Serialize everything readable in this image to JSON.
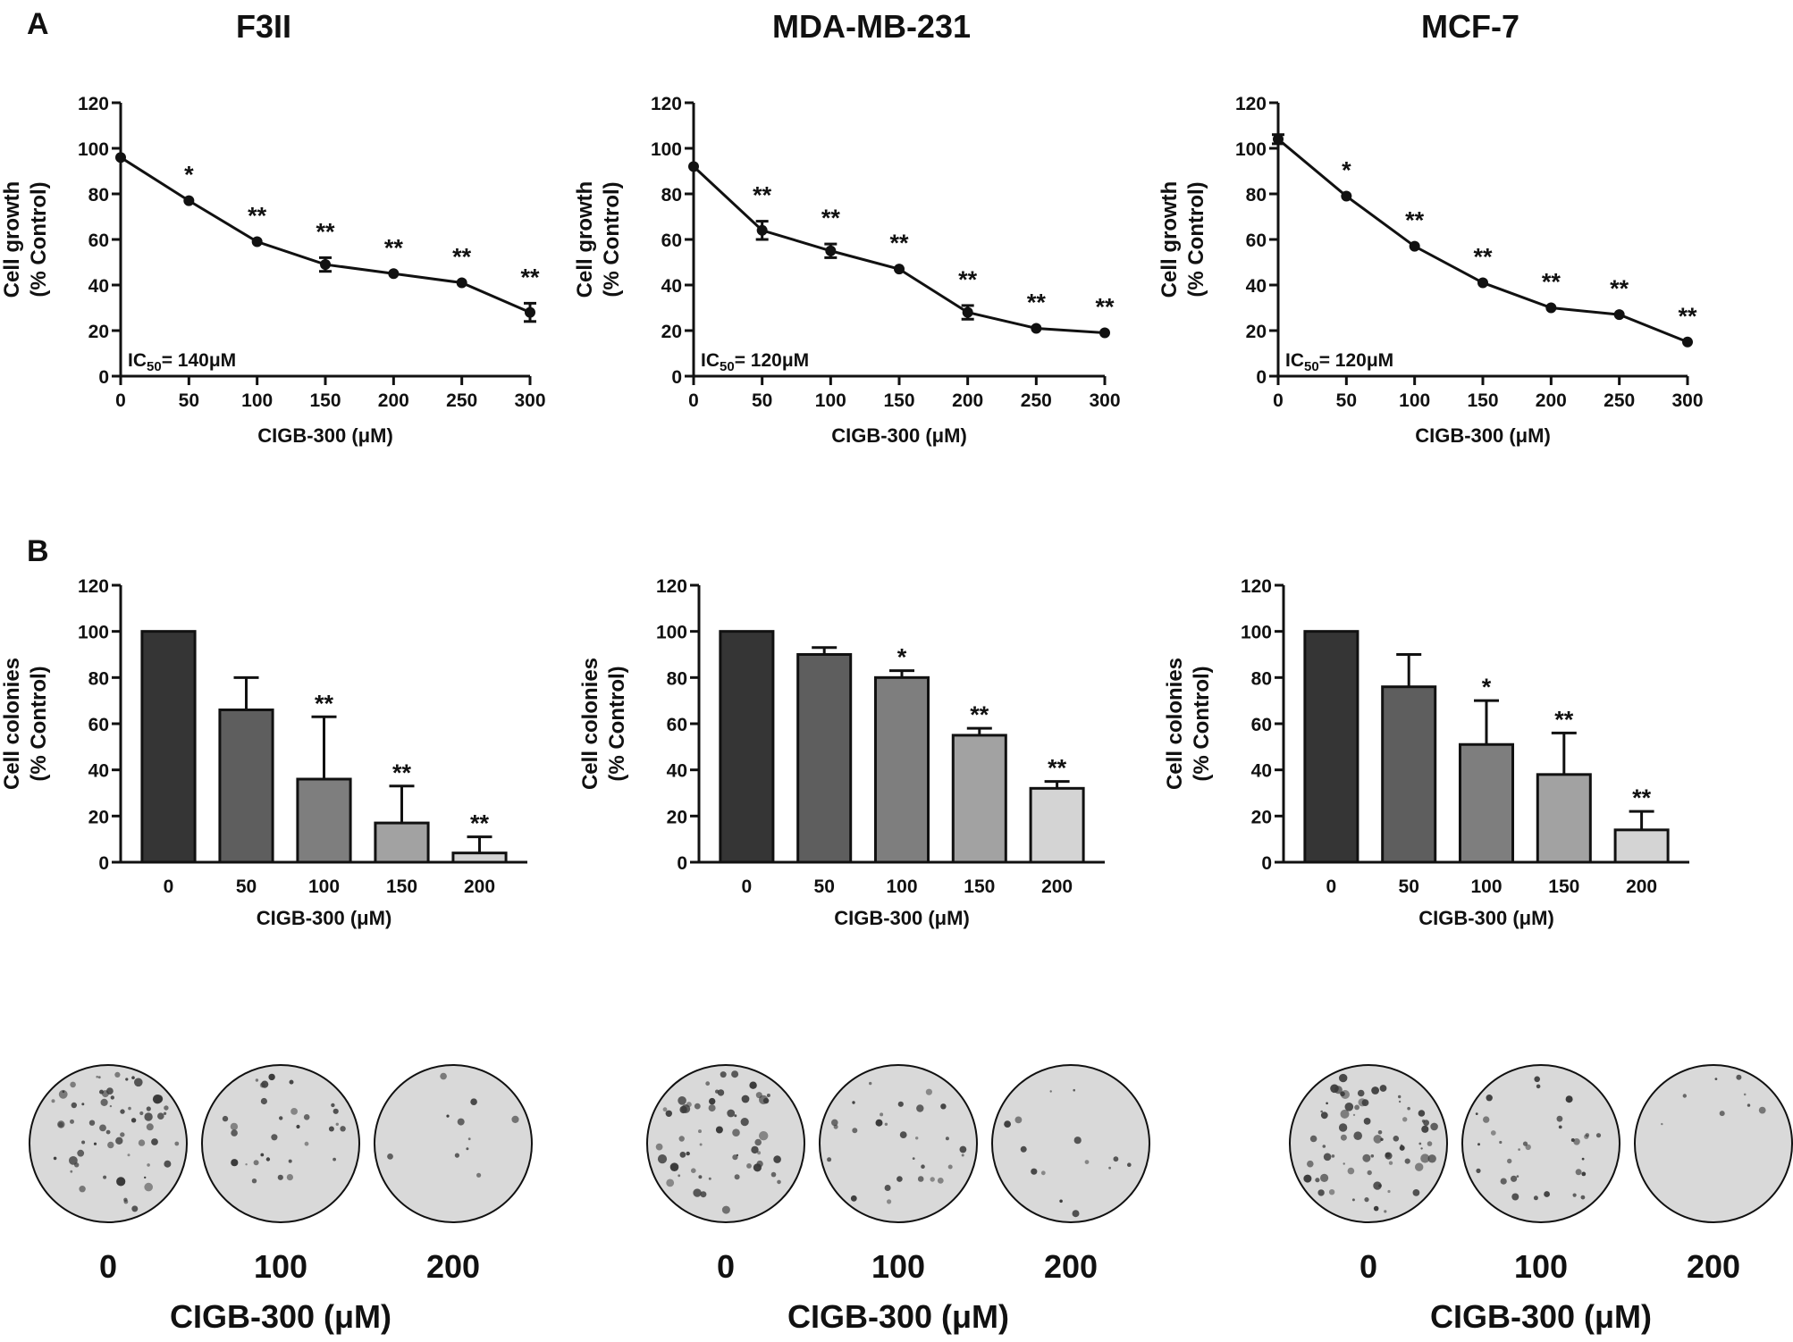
{
  "panel_labels": [
    "A",
    "B"
  ],
  "cell_lines": [
    "F3II",
    "MDA-MB-231",
    "MCF-7"
  ],
  "x_axis_label": "CIGB-300 (μM)",
  "growth_y_label_line1": "Cell growth",
  "growth_y_label_line2": "(% Control)",
  "colony_y_label_line1": "Cell colonies",
  "colony_y_label_line2": "(% Control)",
  "ic50_prefix": "IC",
  "ic50_subscript": "50",
  "ic50_values": [
    "= 140μM",
    "= 120μM",
    "= 120μM"
  ],
  "plate_labels": [
    "0",
    "100",
    "200"
  ],
  "plate_axis_label": "CIGB-300 (μM)",
  "colors": {
    "axis": "#111111",
    "bar_shades": [
      "#353535",
      "#5e5e5e",
      "#7e7e7e",
      "#a2a2a2",
      "#d4d4d4"
    ],
    "plate_bg": "#d9d9d9",
    "colony": "#3a3a3a"
  },
  "chart_data": [
    {
      "id": "A-F3II",
      "type": "line",
      "title": "F3II",
      "xlabel": "CIGB-300 (μM)",
      "ylabel": "Cell growth (% Control)",
      "x": [
        0,
        50,
        100,
        150,
        200,
        250,
        300
      ],
      "y": [
        96,
        77,
        59,
        49,
        45,
        41,
        28
      ],
      "err": [
        0,
        0,
        0,
        3,
        0,
        0,
        4
      ],
      "sig": [
        "",
        "*",
        "**",
        "**",
        "**",
        "**",
        "**"
      ],
      "xticks": [
        "0",
        "50",
        "100",
        "150",
        "200",
        "250",
        "300"
      ],
      "yticks": [
        "0",
        "20",
        "40",
        "60",
        "80",
        "100",
        "120"
      ],
      "xlim": [
        0,
        300
      ],
      "ylim": [
        0,
        120
      ],
      "annotation": "IC50= 140μM"
    },
    {
      "id": "A-MDA-MB-231",
      "type": "line",
      "title": "MDA-MB-231",
      "xlabel": "CIGB-300 (μM)",
      "ylabel": "Cell growth (% Control)",
      "x": [
        0,
        50,
        100,
        150,
        200,
        250,
        300
      ],
      "y": [
        92,
        64,
        55,
        47,
        28,
        21,
        19
      ],
      "err": [
        0,
        4,
        3,
        0,
        3,
        0,
        0
      ],
      "sig": [
        "",
        "**",
        "**",
        "**",
        "**",
        "**",
        "**"
      ],
      "xticks": [
        "0",
        "50",
        "100",
        "150",
        "200",
        "250",
        "300"
      ],
      "yticks": [
        "0",
        "20",
        "40",
        "60",
        "80",
        "100",
        "120"
      ],
      "xlim": [
        0,
        300
      ],
      "ylim": [
        0,
        120
      ],
      "annotation": "IC50= 120μM"
    },
    {
      "id": "A-MCF-7",
      "type": "line",
      "title": "MCF-7",
      "xlabel": "CIGB-300 (μM)",
      "ylabel": "Cell growth (% Control)",
      "x": [
        0,
        50,
        100,
        150,
        200,
        250,
        300
      ],
      "y": [
        104,
        79,
        57,
        41,
        30,
        27,
        15
      ],
      "err": [
        2,
        0,
        0,
        0,
        0,
        0,
        0
      ],
      "sig": [
        "",
        "*",
        "**",
        "**",
        "**",
        "**",
        "**"
      ],
      "xticks": [
        "0",
        "50",
        "100",
        "150",
        "200",
        "250",
        "300"
      ],
      "yticks": [
        "0",
        "20",
        "40",
        "60",
        "80",
        "100",
        "120"
      ],
      "xlim": [
        0,
        300
      ],
      "ylim": [
        0,
        120
      ],
      "annotation": "IC50= 120μM"
    },
    {
      "id": "B-F3II",
      "type": "bar",
      "xlabel": "CIGB-300 (μM)",
      "ylabel": "Cell colonies (% Control)",
      "categories": [
        "0",
        "50",
        "100",
        "150",
        "200"
      ],
      "values": [
        100,
        66,
        36,
        17,
        4
      ],
      "err": [
        0,
        14,
        27,
        16,
        7
      ],
      "sig": [
        "",
        "",
        "**",
        "**",
        "**"
      ],
      "yticks": [
        "0",
        "20",
        "40",
        "60",
        "80",
        "100",
        "120"
      ],
      "ylim": [
        0,
        120
      ]
    },
    {
      "id": "B-MDA-MB-231",
      "type": "bar",
      "xlabel": "CIGB-300 (μM)",
      "ylabel": "Cell colonies (% Control)",
      "categories": [
        "0",
        "50",
        "100",
        "150",
        "200"
      ],
      "values": [
        100,
        90,
        80,
        55,
        32
      ],
      "err": [
        0,
        3,
        3,
        3,
        3
      ],
      "sig": [
        "",
        "",
        "*",
        "**",
        "**"
      ],
      "yticks": [
        "0",
        "20",
        "40",
        "60",
        "80",
        "100",
        "120"
      ],
      "ylim": [
        0,
        120
      ]
    },
    {
      "id": "B-MCF-7",
      "type": "bar",
      "xlabel": "CIGB-300 (μM)",
      "ylabel": "Cell colonies (% Control)",
      "categories": [
        "0",
        "50",
        "100",
        "150",
        "200"
      ],
      "values": [
        100,
        76,
        51,
        38,
        14
      ],
      "err": [
        0,
        14,
        19,
        18,
        8
      ],
      "sig": [
        "",
        "",
        "*",
        "**",
        "**"
      ],
      "yticks": [
        "0",
        "20",
        "40",
        "60",
        "80",
        "100",
        "120"
      ],
      "ylim": [
        0,
        120
      ]
    }
  ]
}
